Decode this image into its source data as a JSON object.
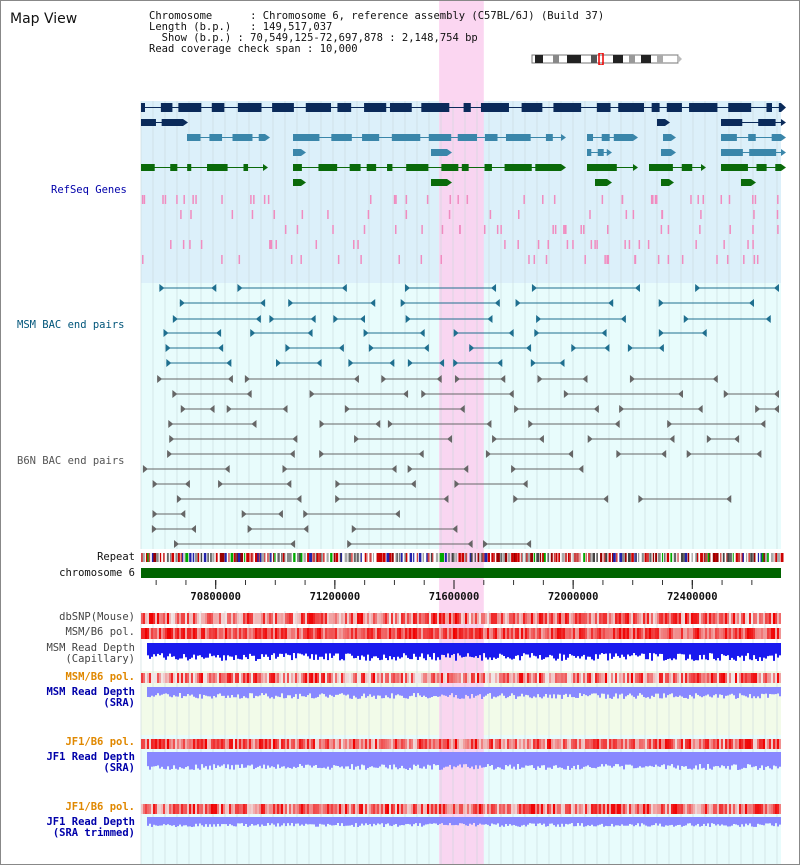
{
  "title": "Map View",
  "info": {
    "chromosome_key": "Chromosome",
    "chromosome_value": "Chromosome 6, reference assembly (C57BL/6J) (Build 37)",
    "length_key": "Length (b.p.)",
    "length_value": "149,517,037",
    "show_key": "Show (b.p.)",
    "show_value": "70,549,125-72,697,878 : 2,148,754 bp",
    "span_key": "Read coverage check span",
    "span_value": "10,000"
  },
  "axis": {
    "start": 70549125,
    "end": 72697878,
    "ticks": [
      70800000,
      71200000,
      71600000,
      72000000,
      72400000
    ],
    "highlight": [
      71550000,
      71700000
    ]
  },
  "tracks": {
    "refseq": "RefSeq Genes",
    "msm_bac": "MSM BAC end pairs",
    "b6n_bac": "B6N BAC end pairs",
    "repeat": "Repeat",
    "chromosome": "chromosome 6",
    "dbsnp": "dbSNP(Mouse)",
    "msm_b6_pol_1": "MSM/B6 pol.",
    "msm_depth_cap_1": "MSM Read Depth",
    "msm_depth_cap_2": "(Capillary)",
    "msm_b6_pol_2": "MSM/B6 pol.",
    "msm_depth_sra_1": "MSM Read Depth",
    "msm_depth_sra_2": "(SRA)",
    "jf1_b6_pol_1": "JF1/B6 pol.",
    "jf1_depth_sra_1": "JF1 Read Depth",
    "jf1_depth_sra_2": "(SRA)",
    "jf1_b6_pol_2": "JF1/B6 pol.",
    "jf1_depth_trim_1": "JF1 Read Depth",
    "jf1_depth_trim_2": "(SRA trimmed)"
  },
  "colors": {
    "refseq_bg": "#dcf0fa",
    "bac_bg": "#e8fcfc",
    "highlight": "#fbd2f0",
    "refseq_dark": "#0a2a5a",
    "refseq_mid": "#3a86aa",
    "refseq_green": "#0a6a0a",
    "msm_bac": "#1f6f8f",
    "b6n_bac": "#666666",
    "label_blue": "#0000aa",
    "label_teal": "#00557a",
    "label_orange": "#e08800",
    "chrom_bar": "#006400",
    "depth_dark": "#1a1aee",
    "depth_light": "#8888ff"
  }
}
